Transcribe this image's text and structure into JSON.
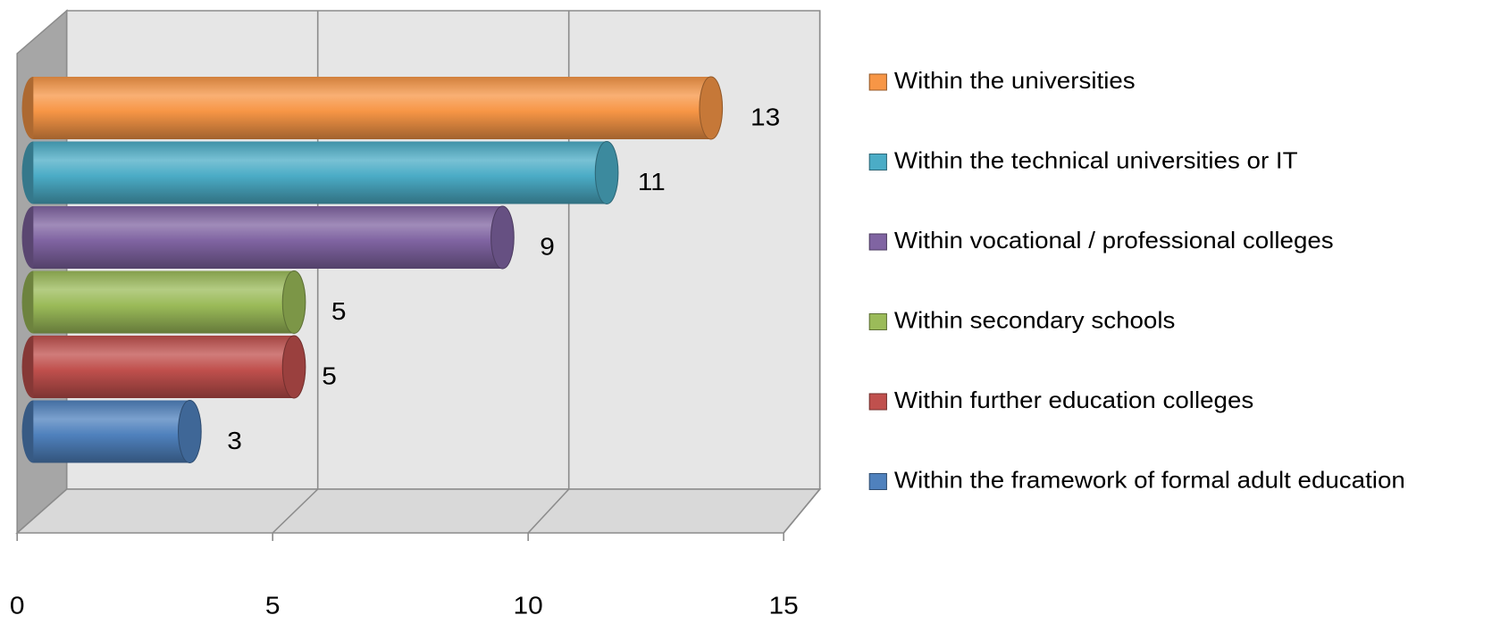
{
  "chart_data": {
    "type": "bar3d",
    "series": [
      {
        "name": "Within the universities",
        "color": "#f79646",
        "values": [
          13
        ]
      },
      {
        "name": "Within the technical universities or IT",
        "color": "#4bacc6",
        "values": [
          11
        ]
      },
      {
        "name": "Within vocational / professional colleges",
        "color": "#8064a2",
        "values": [
          9
        ]
      },
      {
        "name": "Within secondary schools",
        "color": "#9bbb59",
        "values": [
          5
        ]
      },
      {
        "name": "Within further education colleges",
        "color": "#c0504d",
        "values": [
          5
        ]
      },
      {
        "name": "Within the framework of formal adult education",
        "color": "#4f81bd",
        "values": [
          3
        ]
      }
    ],
    "xlim": [
      0,
      15
    ],
    "xticks": [
      0,
      5,
      10,
      15
    ],
    "grid": true,
    "legend": "right"
  }
}
